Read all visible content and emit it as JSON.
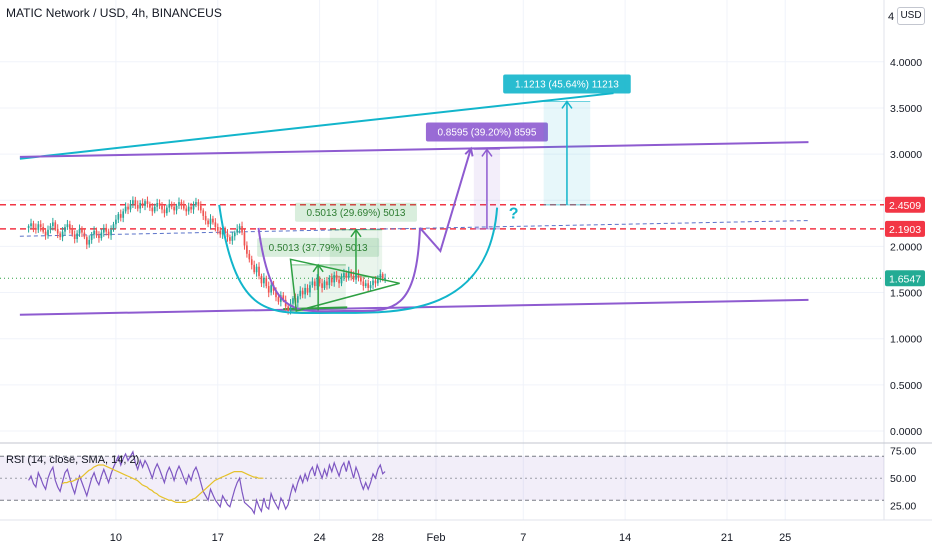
{
  "header": {
    "title": "MATIC Network / USD, 4h, BINANCEUS",
    "currency_badge": "USD",
    "top_axis_label": "4"
  },
  "colors": {
    "up_candle": "#26a69a",
    "down_candle": "#ef5350",
    "channel_cyan": "#12b5cb",
    "channel_purple": "#8e5bd0",
    "resistance_red": "#f23645",
    "triangle_green": "#2ea043",
    "rsi_line": "#7e57c2",
    "rsi_ma": "#e5c12a",
    "price_label_green": "#22ab94"
  },
  "chart_data": [
    {
      "type": "candlestick",
      "symbol": "MATIC Network / USD",
      "interval": "4h",
      "exchange": "BINANCEUS",
      "y_axis": {
        "ticks": [
          "4.0000",
          "3.5000",
          "3.0000",
          "2.5000",
          "2.0000",
          "1.5000",
          "1.0000",
          "0.5000",
          "0.0000"
        ],
        "tick_values": [
          4.0,
          3.5,
          3.0,
          2.5,
          2.0,
          1.5,
          1.0,
          0.5,
          0.0
        ],
        "range": [
          0,
          4.3
        ]
      },
      "x_axis": {
        "ticks": [
          "10",
          "17",
          "24",
          "28",
          "Feb",
          "7",
          "14",
          "21",
          "25"
        ],
        "tick_days": [
          10,
          17,
          24,
          28,
          32,
          38,
          45,
          52,
          56
        ]
      },
      "price_labels": [
        {
          "text": "2.4509",
          "value": 2.4509,
          "kind": "red"
        },
        {
          "text": "2.1903",
          "value": 2.1903,
          "kind": "red"
        },
        {
          "text": "1.6547",
          "value": 1.6547,
          "kind": "green"
        }
      ],
      "candles": {
        "start_day": 4,
        "step_day": 0.1667,
        "closes": [
          2.22,
          2.25,
          2.2,
          2.18,
          2.24,
          2.21,
          2.16,
          2.12,
          2.18,
          2.22,
          2.26,
          2.19,
          2.14,
          2.1,
          2.16,
          2.21,
          2.24,
          2.19,
          2.13,
          2.08,
          2.14,
          2.19,
          2.15,
          2.1,
          2.02,
          2.07,
          2.13,
          2.17,
          2.12,
          2.09,
          2.15,
          2.2,
          2.16,
          2.12,
          2.18,
          2.24,
          2.29,
          2.35,
          2.31,
          2.38,
          2.43,
          2.4,
          2.46,
          2.5,
          2.45,
          2.41,
          2.47,
          2.44,
          2.49,
          2.46,
          2.42,
          2.38,
          2.43,
          2.47,
          2.44,
          2.4,
          2.36,
          2.42,
          2.46,
          2.43,
          2.39,
          2.44,
          2.48,
          2.45,
          2.41,
          2.38,
          2.43,
          2.4,
          2.45,
          2.48,
          2.44,
          2.39,
          2.33,
          2.28,
          2.24,
          2.3,
          2.26,
          2.21,
          2.17,
          2.13,
          2.18,
          2.14,
          2.1,
          2.06,
          2.11,
          2.15,
          2.19,
          2.22,
          2.15,
          2.01,
          1.92,
          1.86,
          1.8,
          1.72,
          1.78,
          1.68,
          1.6,
          1.66,
          1.57,
          1.5,
          1.58,
          1.52,
          1.45,
          1.4,
          1.47,
          1.42,
          1.35,
          1.3,
          1.38,
          1.44,
          1.39,
          1.46,
          1.52,
          1.48,
          1.55,
          1.5,
          1.58,
          1.62,
          1.57,
          1.65,
          1.6,
          1.55,
          1.62,
          1.58,
          1.66,
          1.61,
          1.69,
          1.64,
          1.6,
          1.67,
          1.71,
          1.66,
          1.73,
          1.68,
          1.64,
          1.7,
          1.66,
          1.62,
          1.57,
          1.6,
          1.55,
          1.58,
          1.63,
          1.6,
          1.66,
          1.7,
          1.65,
          1.6547
        ]
      },
      "annotations": [
        {
          "kind": "ray-line",
          "color": "cyan",
          "points": [
            [
              3.4,
              2.95
            ],
            [
              44.2,
              3.66
            ]
          ],
          "extend": "both"
        },
        {
          "kind": "line",
          "color": "purple",
          "points": [
            [
              3.4,
              2.97
            ],
            [
              57.6,
              3.13
            ]
          ]
        },
        {
          "kind": "line",
          "color": "purple",
          "points": [
            [
              3.4,
              1.26
            ],
            [
              57.6,
              1.42
            ]
          ]
        },
        {
          "kind": "hline-dashed",
          "color": "red",
          "value": 2.4509
        },
        {
          "kind": "hline-dashed",
          "color": "red",
          "value": 2.1903
        },
        {
          "kind": "line-dashed",
          "color": "blue",
          "points": [
            [
              3.4,
              2.11
            ],
            [
              57.6,
              2.28
            ]
          ]
        },
        {
          "kind": "hline-dotted",
          "color": "green",
          "value": 1.6547
        },
        {
          "kind": "arc",
          "color": "cyan",
          "from": [
            17.1,
            2.45
          ],
          "bottom": [
            24.9,
            1.28
          ],
          "to": [
            36.2,
            2.42
          ]
        },
        {
          "kind": "arc",
          "color": "purple",
          "from": [
            19.8,
            2.2
          ],
          "bottom": [
            25.7,
            1.3
          ],
          "to": [
            30.9,
            2.2
          ]
        },
        {
          "kind": "path",
          "color": "purple",
          "points": [
            [
              30.9,
              2.2
            ],
            [
              32.3,
              1.95
            ],
            [
              34.4,
              3.06
            ]
          ]
        },
        {
          "kind": "triangle",
          "color": "green",
          "points": [
            [
              22.0,
              1.86
            ],
            [
              29.5,
              1.6
            ],
            [
              22.4,
              1.3
            ]
          ]
        },
        {
          "kind": "line",
          "color": "green",
          "points": [
            [
              21.5,
              1.32
            ],
            [
              25.9,
              1.34
            ]
          ]
        },
        {
          "kind": "measure",
          "color": "green",
          "x_range": [
            22.0,
            25.8
          ],
          "from": 1.3,
          "to": 1.8,
          "label": "0.5013 (37.79%) 5013"
        },
        {
          "kind": "measure",
          "color": "green",
          "x_range": [
            24.7,
            28.3
          ],
          "from": 1.67,
          "to": 2.18,
          "label": "0.5013 (29.69%) 5013"
        },
        {
          "kind": "measure",
          "color": "purple",
          "x_range": [
            34.6,
            36.4
          ],
          "from": 2.19,
          "to": 3.05,
          "label": "0.8595 (39.20%) 8595"
        },
        {
          "kind": "measure",
          "color": "cyan",
          "x_range": [
            39.4,
            42.6
          ],
          "from": 2.45,
          "to": 3.57,
          "label": "1.1213 (45.64%) 11213"
        },
        {
          "kind": "text",
          "color": "cyan",
          "text": "?",
          "at": [
            37.0,
            2.3
          ]
        }
      ]
    },
    {
      "type": "line",
      "title": "RSI (14, close, SMA, 14, 2)",
      "y_axis": {
        "ticks": [
          "75.00",
          "50.00",
          "25.00"
        ],
        "tick_values": [
          75,
          50,
          25
        ],
        "range": [
          12,
          82
        ]
      },
      "band": [
        30,
        70
      ],
      "series": [
        {
          "name": "RSI",
          "start_day": 4,
          "step_day": 0.1667,
          "values": [
            48,
            52,
            45,
            42,
            55,
            50,
            44,
            40,
            50,
            56,
            60,
            48,
            42,
            38,
            47,
            55,
            58,
            50,
            42,
            36,
            45,
            52,
            46,
            40,
            34,
            42,
            50,
            55,
            48,
            44,
            52,
            58,
            52,
            46,
            54,
            60,
            65,
            70,
            62,
            68,
            72,
            66,
            70,
            74,
            64,
            58,
            66,
            60,
            66,
            62,
            56,
            50,
            58,
            63,
            58,
            52,
            46,
            55,
            60,
            55,
            48,
            56,
            61,
            56,
            50,
            45,
            53,
            48,
            56,
            60,
            54,
            46,
            38,
            34,
            30,
            40,
            35,
            30,
            27,
            24,
            34,
            30,
            26,
            24,
            32,
            40,
            46,
            50,
            38,
            28,
            26,
            24,
            22,
            18,
            30,
            24,
            20,
            32,
            24,
            22,
            36,
            30,
            26,
            22,
            32,
            28,
            22,
            26,
            36,
            44,
            38,
            46,
            52,
            46,
            54,
            48,
            56,
            60,
            52,
            62,
            56,
            50,
            58,
            52,
            62,
            56,
            64,
            58,
            52,
            60,
            64,
            56,
            66,
            58,
            50,
            60,
            54,
            46,
            40,
            46,
            40,
            46,
            54,
            50,
            58,
            62,
            54,
            56
          ]
        },
        {
          "name": "RSI-based MA",
          "start_day": 6.3,
          "step_day": 0.1667,
          "values": [
            45,
            46,
            46,
            47,
            47,
            48,
            49,
            50,
            51,
            53,
            55,
            57,
            58,
            60,
            61,
            62,
            62,
            62,
            61,
            60,
            59,
            58,
            57,
            56,
            55,
            54,
            53,
            52,
            51,
            50,
            49,
            48,
            46,
            44,
            43,
            42,
            40,
            39,
            37,
            36,
            34,
            33,
            32,
            31,
            30,
            30,
            29,
            28,
            28,
            28,
            28,
            28,
            29,
            30,
            31,
            32,
            34,
            36,
            38,
            40,
            42,
            44,
            46,
            48,
            49,
            50,
            51,
            52,
            53,
            54,
            55,
            56,
            56,
            56,
            56,
            55,
            54,
            53,
            52,
            51,
            51,
            50,
            50,
            50
          ]
        }
      ]
    }
  ]
}
